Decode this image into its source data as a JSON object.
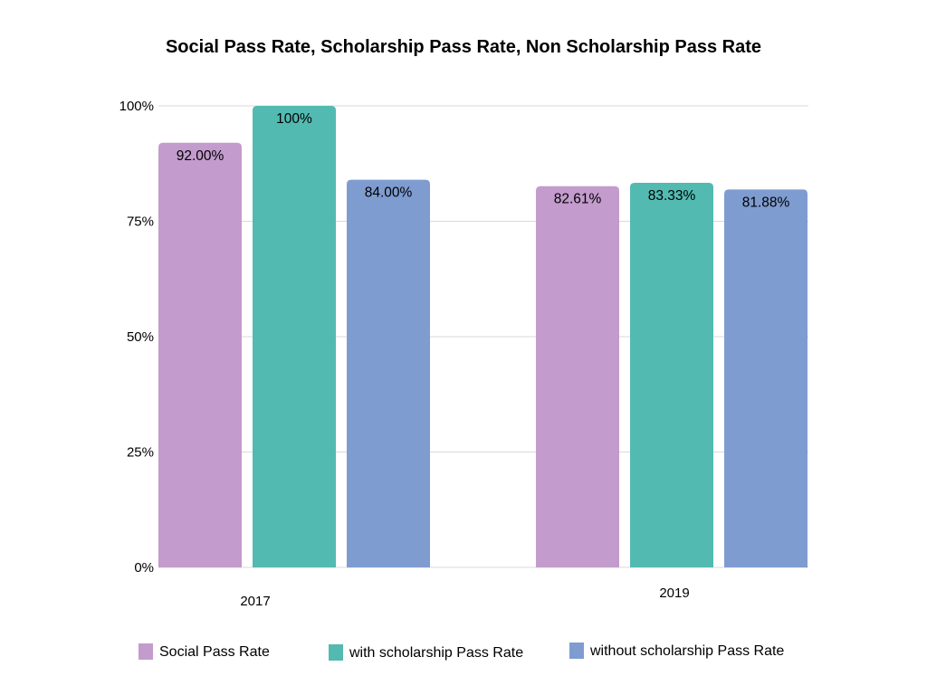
{
  "chart_data": {
    "type": "bar",
    "title": "Social Pass Rate, Scholarship Pass Rate, Non Scholarship Pass Rate",
    "xlabel": "",
    "ylabel": "",
    "categories": [
      "2017",
      "2019"
    ],
    "series": [
      {
        "name": "Social Pass Rate",
        "color": "#c39bcd",
        "values": [
          92.0,
          82.61
        ],
        "labels": [
          "92.00%",
          "82.61%"
        ]
      },
      {
        "name": "with scholarship Pass Rate",
        "color": "#52bab1",
        "values": [
          100,
          83.33
        ],
        "labels": [
          "100%",
          "83.33%"
        ]
      },
      {
        "name": "without scholarship Pass Rate",
        "color": "#7e9cd0",
        "values": [
          84.0,
          81.88
        ],
        "labels": [
          "84.00%",
          "81.88%"
        ]
      }
    ],
    "ylim": [
      0,
      100
    ],
    "yticks": [
      {
        "value": 0,
        "label": "0%"
      },
      {
        "value": 25,
        "label": "25%"
      },
      {
        "value": 50,
        "label": "50%"
      },
      {
        "value": 75,
        "label": "75%"
      },
      {
        "value": 100,
        "label": "100%"
      }
    ],
    "grid": true,
    "legend_position": "bottom"
  }
}
